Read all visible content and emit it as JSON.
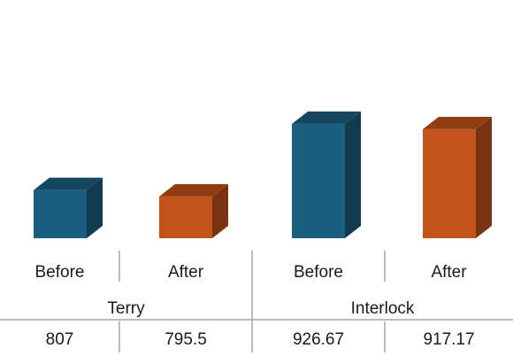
{
  "chart_data": {
    "type": "bar",
    "groups": [
      {
        "label": "Terry",
        "bars": [
          {
            "label": "Before",
            "value": 807,
            "value_text": "807"
          },
          {
            "label": "After",
            "value": 795.5,
            "value_text": "795.5"
          }
        ]
      },
      {
        "label": "Interlock",
        "bars": [
          {
            "label": "Before",
            "value": 926.67,
            "value_text": "926.67"
          },
          {
            "label": "After",
            "value": 917.17,
            "value_text": "917.17"
          }
        ]
      }
    ],
    "series_colors": {
      "Before": "#1b5f80",
      "After": "#c2531a"
    },
    "three_d": true,
    "grid": false,
    "legend": "none",
    "axis_labels_visible": false
  }
}
